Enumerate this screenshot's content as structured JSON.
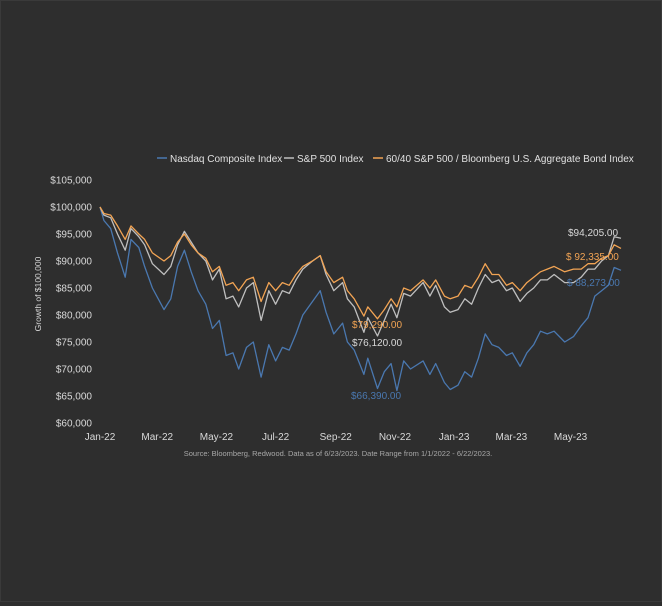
{
  "chart_data": {
    "type": "line",
    "title": "",
    "xlabel": "",
    "ylabel": "Growth of $100,000",
    "source": "Source: Bloomberg, Redwood. Data as of 6/23/2023. Date Range from 1/1/2022 - 6/22/2023.",
    "ylim": [
      60000,
      105000
    ],
    "y_ticks": [
      "$60,000",
      "$65,000",
      "$70,000",
      "$75,000",
      "$80,000",
      "$85,000",
      "$90,000",
      "$95,000",
      "$100,000",
      "$105,000"
    ],
    "x_ticks": [
      "Jan-22",
      "Mar-22",
      "May-22",
      "Jul-22",
      "Sep-22",
      "Nov-22",
      "Jan-23",
      "Mar-23",
      "May-23"
    ],
    "x_range": [
      "2022-01-01",
      "2023-06-22"
    ],
    "legend_position": "top",
    "grid": false,
    "series": [
      {
        "name": "Nasdaq Composite Index",
        "color": "#4a78b0",
        "points": [
          [
            "2022-01-01",
            100000
          ],
          [
            "2022-01-05",
            97500
          ],
          [
            "2022-01-12",
            96000
          ],
          [
            "2022-01-19",
            91500
          ],
          [
            "2022-01-27",
            87000
          ],
          [
            "2022-02-02",
            94000
          ],
          [
            "2022-02-10",
            92500
          ],
          [
            "2022-02-16",
            89000
          ],
          [
            "2022-02-24",
            85000
          ],
          [
            "2022-03-08",
            81000
          ],
          [
            "2022-03-15",
            83000
          ],
          [
            "2022-03-22",
            89000
          ],
          [
            "2022-03-29",
            92000
          ],
          [
            "2022-04-05",
            88000
          ],
          [
            "2022-04-12",
            84500
          ],
          [
            "2022-04-20",
            82000
          ],
          [
            "2022-04-27",
            77500
          ],
          [
            "2022-05-04",
            79000
          ],
          [
            "2022-05-11",
            72500
          ],
          [
            "2022-05-18",
            73000
          ],
          [
            "2022-05-24",
            70000
          ],
          [
            "2022-06-01",
            74000
          ],
          [
            "2022-06-08",
            75000
          ],
          [
            "2022-06-16",
            68500
          ],
          [
            "2022-06-24",
            74500
          ],
          [
            "2022-07-01",
            71500
          ],
          [
            "2022-07-08",
            74000
          ],
          [
            "2022-07-15",
            73500
          ],
          [
            "2022-07-22",
            76500
          ],
          [
            "2022-07-29",
            80000
          ],
          [
            "2022-08-08",
            82500
          ],
          [
            "2022-08-16",
            84500
          ],
          [
            "2022-08-22",
            80500
          ],
          [
            "2022-08-30",
            76500
          ],
          [
            "2022-09-08",
            78500
          ],
          [
            "2022-09-13",
            75000
          ],
          [
            "2022-09-20",
            73500
          ],
          [
            "2022-09-30",
            69000
          ],
          [
            "2022-10-04",
            72000
          ],
          [
            "2022-10-14",
            66390
          ],
          [
            "2022-10-21",
            69500
          ],
          [
            "2022-10-28",
            71000
          ],
          [
            "2022-11-03",
            66000
          ],
          [
            "2022-11-10",
            71500
          ],
          [
            "2022-11-17",
            70000
          ],
          [
            "2022-11-30",
            71500
          ],
          [
            "2022-12-07",
            69000
          ],
          [
            "2022-12-13",
            71000
          ],
          [
            "2022-12-22",
            67500
          ],
          [
            "2022-12-28",
            66200
          ],
          [
            "2023-01-05",
            67000
          ],
          [
            "2023-01-12",
            69500
          ],
          [
            "2023-01-19",
            68500
          ],
          [
            "2023-01-26",
            72000
          ],
          [
            "2023-02-02",
            76500
          ],
          [
            "2023-02-09",
            74500
          ],
          [
            "2023-02-16",
            74000
          ],
          [
            "2023-02-24",
            72500
          ],
          [
            "2023-03-02",
            73000
          ],
          [
            "2023-03-10",
            70500
          ],
          [
            "2023-03-17",
            73000
          ],
          [
            "2023-03-24",
            74500
          ],
          [
            "2023-03-31",
            77000
          ],
          [
            "2023-04-07",
            76500
          ],
          [
            "2023-04-14",
            77000
          ],
          [
            "2023-04-25",
            75000
          ],
          [
            "2023-05-04",
            76000
          ],
          [
            "2023-05-12",
            78000
          ],
          [
            "2023-05-19",
            79500
          ],
          [
            "2023-05-26",
            83500
          ],
          [
            "2023-06-02",
            84500
          ],
          [
            "2023-06-09",
            85500
          ],
          [
            "2023-06-15",
            88800
          ],
          [
            "2023-06-22",
            88273
          ]
        ]
      },
      {
        "name": "S&P 500 Index",
        "color": "#bfbfbf",
        "points": [
          [
            "2022-01-01",
            100000
          ],
          [
            "2022-01-05",
            98500
          ],
          [
            "2022-01-12",
            98000
          ],
          [
            "2022-01-19",
            95000
          ],
          [
            "2022-01-27",
            92000
          ],
          [
            "2022-02-02",
            96000
          ],
          [
            "2022-02-10",
            94500
          ],
          [
            "2022-02-16",
            93000
          ],
          [
            "2022-02-24",
            89500
          ],
          [
            "2022-03-08",
            87500
          ],
          [
            "2022-03-15",
            89000
          ],
          [
            "2022-03-22",
            93000
          ],
          [
            "2022-03-29",
            95500
          ],
          [
            "2022-04-05",
            93500
          ],
          [
            "2022-04-12",
            91500
          ],
          [
            "2022-04-20",
            90000
          ],
          [
            "2022-04-27",
            86500
          ],
          [
            "2022-05-04",
            88500
          ],
          [
            "2022-05-11",
            83000
          ],
          [
            "2022-05-18",
            83500
          ],
          [
            "2022-05-24",
            81500
          ],
          [
            "2022-06-01",
            85000
          ],
          [
            "2022-06-08",
            86000
          ],
          [
            "2022-06-16",
            79000
          ],
          [
            "2022-06-24",
            84500
          ],
          [
            "2022-07-01",
            82000
          ],
          [
            "2022-07-08",
            84500
          ],
          [
            "2022-07-15",
            84000
          ],
          [
            "2022-07-22",
            86500
          ],
          [
            "2022-07-29",
            88500
          ],
          [
            "2022-08-08",
            90000
          ],
          [
            "2022-08-16",
            91000
          ],
          [
            "2022-08-22",
            87500
          ],
          [
            "2022-08-30",
            84500
          ],
          [
            "2022-09-08",
            86000
          ],
          [
            "2022-09-13",
            83000
          ],
          [
            "2022-09-20",
            81500
          ],
          [
            "2022-09-30",
            76800
          ],
          [
            "2022-10-04",
            79500
          ],
          [
            "2022-10-14",
            76120
          ],
          [
            "2022-10-21",
            79000
          ],
          [
            "2022-10-28",
            82000
          ],
          [
            "2022-11-03",
            79500
          ],
          [
            "2022-11-10",
            84000
          ],
          [
            "2022-11-17",
            83500
          ],
          [
            "2022-11-30",
            86000
          ],
          [
            "2022-12-07",
            83500
          ],
          [
            "2022-12-13",
            85500
          ],
          [
            "2022-12-22",
            81500
          ],
          [
            "2022-12-28",
            80500
          ],
          [
            "2023-01-05",
            81000
          ],
          [
            "2023-01-12",
            83000
          ],
          [
            "2023-01-19",
            82000
          ],
          [
            "2023-01-26",
            85000
          ],
          [
            "2023-02-02",
            87500
          ],
          [
            "2023-02-09",
            86000
          ],
          [
            "2023-02-16",
            86500
          ],
          [
            "2023-02-24",
            84500
          ],
          [
            "2023-03-02",
            85000
          ],
          [
            "2023-03-10",
            82500
          ],
          [
            "2023-03-17",
            84000
          ],
          [
            "2023-03-24",
            85000
          ],
          [
            "2023-03-31",
            86500
          ],
          [
            "2023-04-07",
            86500
          ],
          [
            "2023-04-14",
            87500
          ],
          [
            "2023-04-25",
            86000
          ],
          [
            "2023-05-04",
            86000
          ],
          [
            "2023-05-12",
            87000
          ],
          [
            "2023-05-19",
            88500
          ],
          [
            "2023-05-26",
            88500
          ],
          [
            "2023-06-02",
            90000
          ],
          [
            "2023-06-09",
            91000
          ],
          [
            "2023-06-15",
            94500
          ],
          [
            "2023-06-22",
            94205
          ]
        ]
      },
      {
        "name": "60/40 S&P 500 / Bloomberg U.S. Aggregate Bond Index",
        "color": "#f2a454",
        "points": [
          [
            "2022-01-01",
            100000
          ],
          [
            "2022-01-05",
            98800
          ],
          [
            "2022-01-12",
            98500
          ],
          [
            "2022-01-19",
            96500
          ],
          [
            "2022-01-27",
            94000
          ],
          [
            "2022-02-02",
            96500
          ],
          [
            "2022-02-10",
            95000
          ],
          [
            "2022-02-16",
            94000
          ],
          [
            "2022-02-24",
            91500
          ],
          [
            "2022-03-08",
            90000
          ],
          [
            "2022-03-15",
            91000
          ],
          [
            "2022-03-22",
            93500
          ],
          [
            "2022-03-29",
            95000
          ],
          [
            "2022-04-05",
            93000
          ],
          [
            "2022-04-12",
            91500
          ],
          [
            "2022-04-20",
            90500
          ],
          [
            "2022-04-27",
            88000
          ],
          [
            "2022-05-04",
            89000
          ],
          [
            "2022-05-11",
            85500
          ],
          [
            "2022-05-18",
            86000
          ],
          [
            "2022-05-24",
            84500
          ],
          [
            "2022-06-01",
            86500
          ],
          [
            "2022-06-08",
            87000
          ],
          [
            "2022-06-16",
            82500
          ],
          [
            "2022-06-24",
            86000
          ],
          [
            "2022-07-01",
            84500
          ],
          [
            "2022-07-08",
            86000
          ],
          [
            "2022-07-15",
            85500
          ],
          [
            "2022-07-22",
            87500
          ],
          [
            "2022-07-29",
            89000
          ],
          [
            "2022-08-08",
            90000
          ],
          [
            "2022-08-16",
            91000
          ],
          [
            "2022-08-22",
            88000
          ],
          [
            "2022-08-30",
            86000
          ],
          [
            "2022-09-08",
            87000
          ],
          [
            "2022-09-13",
            84500
          ],
          [
            "2022-09-20",
            83000
          ],
          [
            "2022-09-30",
            79800
          ],
          [
            "2022-10-04",
            81500
          ],
          [
            "2022-10-14",
            79290
          ],
          [
            "2022-10-21",
            81000
          ],
          [
            "2022-10-28",
            83000
          ],
          [
            "2022-11-03",
            81500
          ],
          [
            "2022-11-10",
            85000
          ],
          [
            "2022-11-17",
            84500
          ],
          [
            "2022-11-30",
            86500
          ],
          [
            "2022-12-07",
            85000
          ],
          [
            "2022-12-13",
            86500
          ],
          [
            "2022-12-22",
            83500
          ],
          [
            "2022-12-28",
            83000
          ],
          [
            "2023-01-05",
            83500
          ],
          [
            "2023-01-12",
            85500
          ],
          [
            "2023-01-19",
            85000
          ],
          [
            "2023-01-26",
            87000
          ],
          [
            "2023-02-02",
            89500
          ],
          [
            "2023-02-09",
            87500
          ],
          [
            "2023-02-16",
            87500
          ],
          [
            "2023-02-24",
            85500
          ],
          [
            "2023-03-02",
            86000
          ],
          [
            "2023-03-10",
            84500
          ],
          [
            "2023-03-17",
            86000
          ],
          [
            "2023-03-24",
            87000
          ],
          [
            "2023-03-31",
            88000
          ],
          [
            "2023-04-07",
            88500
          ],
          [
            "2023-04-14",
            89000
          ],
          [
            "2023-04-25",
            88000
          ],
          [
            "2023-05-04",
            88500
          ],
          [
            "2023-05-12",
            88500
          ],
          [
            "2023-05-19",
            89500
          ],
          [
            "2023-05-26",
            89500
          ],
          [
            "2023-06-02",
            90500
          ],
          [
            "2023-06-09",
            91000
          ],
          [
            "2023-06-15",
            93000
          ],
          [
            "2023-06-22",
            92335
          ]
        ]
      }
    ],
    "annotations": [
      {
        "text": "$94,205.00",
        "series": 1
      },
      {
        "text": "$ 92,335.00",
        "series": 2
      },
      {
        "text": "$ 88,273.00",
        "series": 0
      },
      {
        "text": "$79,290.00",
        "series": 2
      },
      {
        "text": "$76,120.00",
        "series": 1
      },
      {
        "text": "$66,390.00",
        "series": 0
      }
    ]
  }
}
